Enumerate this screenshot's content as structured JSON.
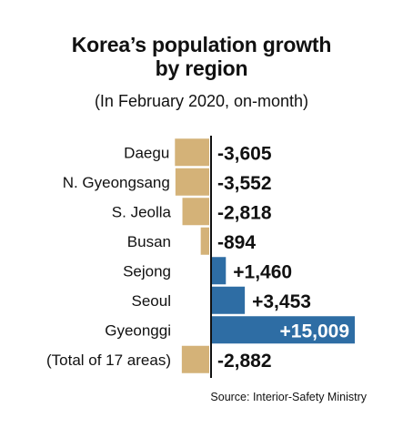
{
  "header": {
    "title_line1": "Korea’s population growth",
    "title_line2": "by region",
    "subtitle": "(In February 2020, on-month)"
  },
  "footer": {
    "source": "Source: Interior-Safety Ministry"
  },
  "colors": {
    "negative": "#d4b278",
    "positive": "#2e6da4",
    "axis": "#111111"
  },
  "chart_data": {
    "type": "bar",
    "orientation": "horizontal",
    "title": "Korea’s population growth by region",
    "subtitle": "(In February 2020, on-month)",
    "categories": [
      "Daegu",
      "N. Gyeongsang",
      "S. Jeolla",
      "Busan",
      "Sejong",
      "Seoul",
      "Gyeonggi",
      "(Total of 17 areas)"
    ],
    "values": [
      -3605,
      -3552,
      -2818,
      -894,
      1460,
      3453,
      15009,
      -2882
    ],
    "value_labels": [
      "-3,605",
      "-3,552",
      "-2,818",
      "-894",
      "+1,460",
      "+3,453",
      "+15,009",
      "-2,882"
    ],
    "xlabel": "",
    "ylabel": "",
    "grid": false,
    "legend": "none"
  }
}
